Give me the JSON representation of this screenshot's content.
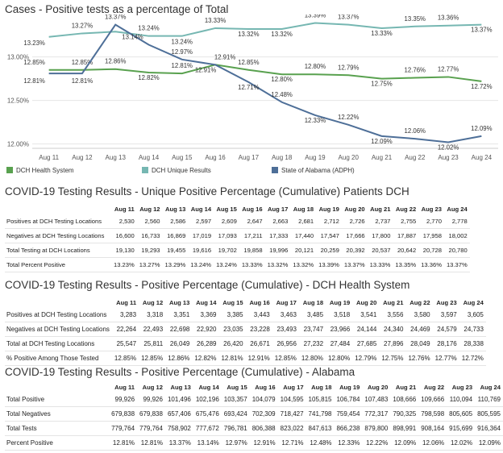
{
  "chart_title": "Cases - Positive tests as a percentage of Total",
  "chart_data": {
    "type": "line",
    "title": "Cases - Positive tests as a percentage of Total",
    "categories": [
      "Aug 11",
      "Aug 12",
      "Aug 13",
      "Aug 14",
      "Aug 15",
      "Aug 16",
      "Aug 17",
      "Aug 18",
      "Aug 19",
      "Aug 20",
      "Aug 21",
      "Aug 22",
      "Aug 23",
      "Aug 24"
    ],
    "ylim": [
      11.95,
      13.45
    ],
    "yticks": [
      "12.00%",
      "12.50%",
      "13.00%"
    ],
    "ytick_values": [
      12.0,
      12.5,
      13.0
    ],
    "grid": true,
    "legend_position": "bottom",
    "series": [
      {
        "name": "DCH Health System",
        "color": "#59a14f",
        "values": [
          12.85,
          12.85,
          12.86,
          12.82,
          12.81,
          12.91,
          12.85,
          12.8,
          12.8,
          12.79,
          12.75,
          12.76,
          12.77,
          12.72
        ],
        "labels": [
          "12.85%",
          "12.85%",
          "12.86%",
          "12.82%",
          "12.81%",
          "12.91%",
          "12.85%",
          "12.80%",
          "12.80%",
          "12.79%",
          "12.75%",
          "12.76%",
          "12.77%",
          "12.72%"
        ]
      },
      {
        "name": "DCH Unique Results",
        "color": "#76b7b2",
        "values": [
          13.23,
          13.27,
          13.29,
          13.24,
          13.24,
          13.33,
          13.32,
          13.32,
          13.39,
          13.37,
          13.33,
          13.35,
          13.36,
          13.37
        ],
        "labels": [
          "13.23%",
          "13.27%",
          "",
          "13.24%",
          "13.24%",
          "13.33%",
          "13.32%",
          "13.32%",
          "13.39%",
          "13.37%",
          "13.33%",
          "13.35%",
          "13.36%",
          "13.37%"
        ]
      },
      {
        "name": "State of Alabama (ADPH)",
        "color": "#4e6f98",
        "values": [
          12.81,
          12.81,
          13.37,
          13.14,
          12.97,
          12.91,
          12.71,
          12.48,
          12.33,
          12.22,
          12.09,
          12.06,
          12.02,
          12.09
        ],
        "labels": [
          "12.81%",
          "12.81%",
          "13.37%",
          "13.14%",
          "12.97%",
          "12.91%",
          "12.71%",
          "12.48%",
          "12.33%",
          "12.22%",
          "12.09%",
          "12.06%",
          "12.02%",
          "12.09%"
        ]
      }
    ]
  },
  "legend": [
    {
      "label": "DCH Health System",
      "color": "#59a14f"
    },
    {
      "label": "DCH Unique Results",
      "color": "#76b7b2"
    },
    {
      "label": "State of Alabama (ADPH)",
      "color": "#4e6f98"
    }
  ],
  "tables": [
    {
      "title": "COVID-19 Testing Results - Unique Positive Percentage (Cumulative) Patients DCH",
      "headers": [
        "Aug 11",
        "Aug 12",
        "Aug 13",
        "Aug 14",
        "Aug 15",
        "Aug 16",
        "Aug 17",
        "Aug 18",
        "Aug 19",
        "Aug 20",
        "Aug 21",
        "Aug 22",
        "Aug 23",
        "Aug 24"
      ],
      "rows": [
        {
          "label": "Positives at DCH Testing Locations",
          "values": [
            "2,530",
            "2,560",
            "2,586",
            "2,597",
            "2,609",
            "2,647",
            "2,663",
            "2,681",
            "2,712",
            "2,726",
            "2,737",
            "2,755",
            "2,770",
            "2,778"
          ]
        },
        {
          "label": "Negatives at DCH Testing Locations",
          "values": [
            "16,600",
            "16,733",
            "16,869",
            "17,019",
            "17,093",
            "17,211",
            "17,333",
            "17,440",
            "17,547",
            "17,666",
            "17,800",
            "17,887",
            "17,958",
            "18,002"
          ]
        },
        {
          "label": "Total Testing at DCH Locations",
          "values": [
            "19,130",
            "19,293",
            "19,455",
            "19,616",
            "19,702",
            "19,858",
            "19,996",
            "20,121",
            "20,259",
            "20,392",
            "20,537",
            "20,642",
            "20,728",
            "20,780"
          ]
        },
        {
          "label": "Total Percent Positive",
          "values": [
            "13.23%",
            "13.27%",
            "13.29%",
            "13.24%",
            "13.24%",
            "13.33%",
            "13.32%",
            "13.32%",
            "13.39%",
            "13.37%",
            "13.33%",
            "13.35%",
            "13.36%",
            "13.37%"
          ]
        }
      ]
    },
    {
      "title": "COVID-19 Testing Results - Positive Percentage (Cumulative) - DCH Health System",
      "headers": [
        "Aug 11",
        "Aug 12",
        "Aug 13",
        "Aug 14",
        "Aug 15",
        "Aug 16",
        "Aug 17",
        "Aug 18",
        "Aug 19",
        "Aug 20",
        "Aug 21",
        "Aug 22",
        "Aug 23",
        "Aug 24"
      ],
      "rows": [
        {
          "label": "Positives at DCH Testing Locations",
          "values": [
            "3,283",
            "3,318",
            "3,351",
            "3,369",
            "3,385",
            "3,443",
            "3,463",
            "3,485",
            "3,518",
            "3,541",
            "3,556",
            "3,580",
            "3,597",
            "3,605"
          ]
        },
        {
          "label": "Negatives at DCH Testing Locations",
          "values": [
            "22,264",
            "22,493",
            "22,698",
            "22,920",
            "23,035",
            "23,228",
            "23,493",
            "23,747",
            "23,966",
            "24,144",
            "24,340",
            "24,469",
            "24,579",
            "24,733"
          ]
        },
        {
          "label": "Total at DCH Testing Locations",
          "values": [
            "25,547",
            "25,811",
            "26,049",
            "26,289",
            "26,420",
            "26,671",
            "26,956",
            "27,232",
            "27,484",
            "27,685",
            "27,896",
            "28,049",
            "28,176",
            "28,338"
          ]
        },
        {
          "label": "% Positive Among Those Tested",
          "values": [
            "12.85%",
            "12.85%",
            "12.86%",
            "12.82%",
            "12.81%",
            "12.91%",
            "12.85%",
            "12.80%",
            "12.80%",
            "12.79%",
            "12.75%",
            "12.76%",
            "12.77%",
            "12.72%"
          ]
        }
      ]
    },
    {
      "title": "COVID-19 Testing Results - Positive Percentage (Cumulative) - Alabama",
      "headers": [
        "Aug 11",
        "Aug 12",
        "Aug 13",
        "Aug 14",
        "Aug 15",
        "Aug 16",
        "Aug 17",
        "Aug 18",
        "Aug 19",
        "Aug 20",
        "Aug 21",
        "Aug 22",
        "Aug 23",
        "Aug 24"
      ],
      "rows": [
        {
          "label": "Total Positive",
          "values": [
            "99,926",
            "99,926",
            "101,496",
            "102,196",
            "103,357",
            "104,079",
            "104,595",
            "105,815",
            "106,784",
            "107,483",
            "108,666",
            "109,666",
            "110,094",
            "110,769"
          ]
        },
        {
          "label": "Total Negatives",
          "values": [
            "679,838",
            "679,838",
            "657,406",
            "675,476",
            "693,424",
            "702,309",
            "718,427",
            "741,798",
            "759,454",
            "772,317",
            "790,325",
            "798,598",
            "805,605",
            "805,595"
          ]
        },
        {
          "label": "Total Tests",
          "values": [
            "779,764",
            "779,764",
            "758,902",
            "777,672",
            "796,781",
            "806,388",
            "823,022",
            "847,613",
            "866,238",
            "879,800",
            "898,991",
            "908,164",
            "915,699",
            "916,364"
          ]
        },
        {
          "label": "Percent Positive",
          "values": [
            "12.81%",
            "12.81%",
            "13.37%",
            "13.14%",
            "12.97%",
            "12.91%",
            "12.71%",
            "12.48%",
            "12.33%",
            "12.22%",
            "12.09%",
            "12.06%",
            "12.02%",
            "12.09%"
          ]
        }
      ]
    }
  ]
}
